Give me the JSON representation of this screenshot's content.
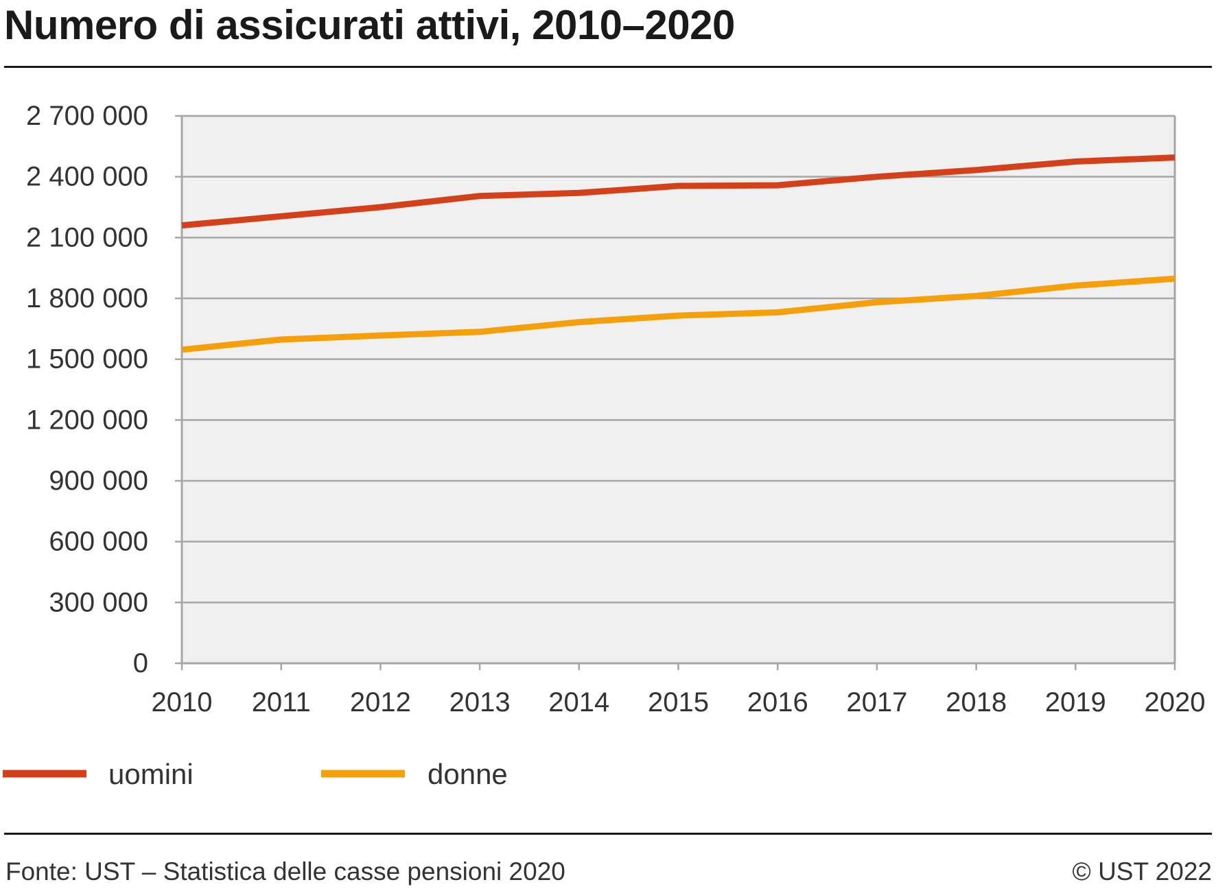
{
  "title": "Numero di assicurati attivi, 2010–2020",
  "chart_data": {
    "type": "line",
    "title": "Numero di assicurati attivi, 2010–2020",
    "x": [
      "2010",
      "2011",
      "2012",
      "2013",
      "2014",
      "2015",
      "2016",
      "2017",
      "2018",
      "2019",
      "2020"
    ],
    "yticks": [
      "0",
      "300 000",
      "600 000",
      "900 000",
      "1 200 000",
      "1 500 000",
      "1 800 000",
      "2 100 000",
      "2 400 000",
      "2 700 000"
    ],
    "ylim": [
      0,
      2700000
    ],
    "grid": true,
    "legend": "bottom-left",
    "series": [
      {
        "name": "uomini",
        "color": "#d4401a",
        "values": [
          2160000,
          2205000,
          2250000,
          2305000,
          2320000,
          2355000,
          2358000,
          2400000,
          2433000,
          2475000,
          2495000
        ]
      },
      {
        "name": "donne",
        "color": "#f5a00a",
        "values": [
          1547000,
          1597000,
          1617000,
          1635000,
          1683000,
          1715000,
          1731000,
          1781000,
          1812000,
          1863000,
          1897000
        ]
      }
    ]
  },
  "footer": {
    "source": "Fonte: UST – Statistica delle casse pensioni 2020",
    "copyright": "© UST 2022"
  }
}
